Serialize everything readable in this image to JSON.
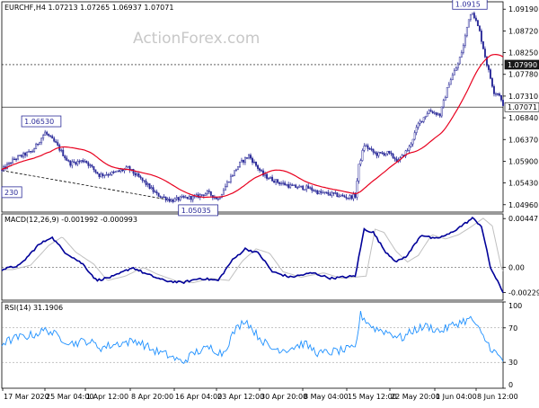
{
  "chart_data": [
    {
      "type": "candlestick",
      "panel": "price",
      "symbol_label": "EURCHF,H4",
      "ohlc_readout": [
        "1.07213",
        "1.07265",
        "1.06937",
        "1.07071"
      ],
      "watermark": "ActionForex.com",
      "ylim": [
        1.048,
        1.0935
      ],
      "y_ticks": [
        1.0919,
        1.0872,
        1.0825,
        1.0778,
        1.0731,
        1.0684,
        1.0637,
        1.059,
        1.0543,
        1.0496
      ],
      "y_tick_labels": [
        "1.09190",
        "1.08720",
        "1.08250",
        "1.07780",
        "1.07310",
        "1.06840",
        "1.06370",
        "1.05900",
        "1.05430",
        "1.04960"
      ],
      "x_tick_labels": [
        "17 Mar 2020",
        "25 Mar 04:00",
        "1 Apr 12:00",
        "8 Apr 20:00",
        "16 Apr 04:00",
        "23 Apr 12:00",
        "30 Apr 20:00",
        "8 May 04:00",
        "15 May 12:00",
        "22 May 20:00",
        "1 Jun 04:00",
        "8 Jun 12:00"
      ],
      "horizontal_levels": [
        {
          "value": 1.0799,
          "label": "1.07990",
          "style": "dotted"
        },
        {
          "value": 1.07071,
          "label": "1.07071",
          "style": "solid"
        }
      ],
      "annotations": [
        {
          "label": "1.06530",
          "value": 1.0653
        },
        {
          "label": "1.05035",
          "value": 1.05035
        },
        {
          "label": "1.0915",
          "value": 1.0915
        },
        {
          "label": "230",
          "value": 1.0523
        }
      ],
      "trendline": {
        "from": 1.057,
        "to": 1.0505,
        "style": "dashed"
      },
      "anchors": [
        {
          "t": 0,
          "v": 1.057
        },
        {
          "t": 14,
          "v": 1.0595
        },
        {
          "t": 34,
          "v": 1.0612
        },
        {
          "t": 48,
          "v": 1.0652
        },
        {
          "t": 60,
          "v": 1.0628
        },
        {
          "t": 75,
          "v": 1.0585
        },
        {
          "t": 92,
          "v": 1.0592
        },
        {
          "t": 108,
          "v": 1.056
        },
        {
          "t": 125,
          "v": 1.0565
        },
        {
          "t": 140,
          "v": 1.0575
        },
        {
          "t": 158,
          "v": 1.0545
        },
        {
          "t": 172,
          "v": 1.0518
        },
        {
          "t": 188,
          "v": 1.0505
        },
        {
          "t": 200,
          "v": 1.051
        },
        {
          "t": 214,
          "v": 1.0512
        },
        {
          "t": 228,
          "v": 1.0522
        },
        {
          "t": 240,
          "v": 1.0508
        },
        {
          "t": 252,
          "v": 1.055
        },
        {
          "t": 264,
          "v": 1.0585
        },
        {
          "t": 274,
          "v": 1.0602
        },
        {
          "t": 290,
          "v": 1.056
        },
        {
          "t": 306,
          "v": 1.0545
        },
        {
          "t": 322,
          "v": 1.0535
        },
        {
          "t": 340,
          "v": 1.0532
        },
        {
          "t": 352,
          "v": 1.0522
        },
        {
          "t": 368,
          "v": 1.0518
        },
        {
          "t": 384,
          "v": 1.0512
        },
        {
          "t": 392,
          "v": 1.0515
        },
        {
          "t": 396,
          "v": 1.058
        },
        {
          "t": 402,
          "v": 1.0625
        },
        {
          "t": 415,
          "v": 1.0605
        },
        {
          "t": 428,
          "v": 1.0608
        },
        {
          "t": 440,
          "v": 1.059
        },
        {
          "t": 452,
          "v": 1.062
        },
        {
          "t": 462,
          "v": 1.067
        },
        {
          "t": 474,
          "v": 1.07
        },
        {
          "t": 486,
          "v": 1.069
        },
        {
          "t": 496,
          "v": 1.076
        },
        {
          "t": 506,
          "v": 1.08
        },
        {
          "t": 512,
          "v": 1.084
        },
        {
          "t": 518,
          "v": 1.09
        },
        {
          "t": 522,
          "v": 1.0915
        },
        {
          "t": 530,
          "v": 1.087
        },
        {
          "t": 538,
          "v": 1.08
        },
        {
          "t": 546,
          "v": 1.074
        },
        {
          "t": 552,
          "v": 1.0735
        },
        {
          "t": 556,
          "v": 1.0707
        }
      ],
      "moving_average": {
        "color": "#e8001e"
      },
      "candle_up_color": "#2b2b99",
      "candle_down_color": "#2b2b99"
    },
    {
      "type": "line",
      "panel": "macd",
      "label": "MACD(12,26,9) -0.001992 -0.000993",
      "ylim": [
        -0.003,
        0.0049
      ],
      "y_ticks": [
        0.004471,
        0.0,
        -0.002299
      ],
      "y_tick_labels": [
        "0.004471",
        "0.00",
        "-0.002299"
      ],
      "series": [
        {
          "color": "#000099"
        },
        {
          "color": "#c0c0c0"
        }
      ],
      "anchors": [
        {
          "t": 0,
          "v": -0.0002
        },
        {
          "t": 20,
          "v": 0.0002
        },
        {
          "t": 40,
          "v": 0.002
        },
        {
          "t": 55,
          "v": 0.0028
        },
        {
          "t": 70,
          "v": 0.0014
        },
        {
          "t": 90,
          "v": 0.0003
        },
        {
          "t": 105,
          "v": -0.0012
        },
        {
          "t": 125,
          "v": -0.0008
        },
        {
          "t": 145,
          "v": 0.0
        },
        {
          "t": 160,
          "v": -0.0006
        },
        {
          "t": 180,
          "v": -0.0012
        },
        {
          "t": 200,
          "v": -0.0014
        },
        {
          "t": 220,
          "v": -0.001
        },
        {
          "t": 240,
          "v": -0.0012
        },
        {
          "t": 255,
          "v": 0.0006
        },
        {
          "t": 270,
          "v": 0.0017
        },
        {
          "t": 285,
          "v": 0.0013
        },
        {
          "t": 300,
          "v": -0.0004
        },
        {
          "t": 320,
          "v": -0.0009
        },
        {
          "t": 345,
          "v": -0.0005
        },
        {
          "t": 365,
          "v": -0.001
        },
        {
          "t": 392,
          "v": -0.0008
        },
        {
          "t": 402,
          "v": 0.0035
        },
        {
          "t": 412,
          "v": 0.0032
        },
        {
          "t": 425,
          "v": 0.0015
        },
        {
          "t": 438,
          "v": 0.0005
        },
        {
          "t": 450,
          "v": 0.0011
        },
        {
          "t": 465,
          "v": 0.003
        },
        {
          "t": 480,
          "v": 0.0026
        },
        {
          "t": 495,
          "v": 0.003
        },
        {
          "t": 510,
          "v": 0.0038
        },
        {
          "t": 522,
          "v": 0.0045
        },
        {
          "t": 532,
          "v": 0.0038
        },
        {
          "t": 542,
          "v": 0.0
        },
        {
          "t": 556,
          "v": -0.0023
        }
      ]
    },
    {
      "type": "line",
      "panel": "rsi",
      "label": "RSI(14) 31.1906",
      "ylim": [
        0,
        100
      ],
      "y_ticks": [
        100,
        70,
        30,
        0
      ],
      "y_tick_labels": [
        "100",
        "70",
        "30",
        "0"
      ],
      "levels": [
        70,
        30
      ],
      "series": [
        {
          "color": "#1e90ff"
        }
      ],
      "anchors": [
        {
          "t": 0,
          "v": 52
        },
        {
          "t": 15,
          "v": 58
        },
        {
          "t": 35,
          "v": 62
        },
        {
          "t": 50,
          "v": 68
        },
        {
          "t": 62,
          "v": 60
        },
        {
          "t": 78,
          "v": 52
        },
        {
          "t": 95,
          "v": 55
        },
        {
          "t": 110,
          "v": 47
        },
        {
          "t": 130,
          "v": 52
        },
        {
          "t": 150,
          "v": 55
        },
        {
          "t": 168,
          "v": 44
        },
        {
          "t": 185,
          "v": 38
        },
        {
          "t": 200,
          "v": 30
        },
        {
          "t": 215,
          "v": 42
        },
        {
          "t": 232,
          "v": 47
        },
        {
          "t": 245,
          "v": 40
        },
        {
          "t": 258,
          "v": 66
        },
        {
          "t": 270,
          "v": 80
        },
        {
          "t": 282,
          "v": 63
        },
        {
          "t": 298,
          "v": 46
        },
        {
          "t": 316,
          "v": 45
        },
        {
          "t": 335,
          "v": 52
        },
        {
          "t": 352,
          "v": 40
        },
        {
          "t": 372,
          "v": 43
        },
        {
          "t": 392,
          "v": 46
        },
        {
          "t": 398,
          "v": 85
        },
        {
          "t": 412,
          "v": 70
        },
        {
          "t": 428,
          "v": 65
        },
        {
          "t": 444,
          "v": 58
        },
        {
          "t": 458,
          "v": 68
        },
        {
          "t": 472,
          "v": 72
        },
        {
          "t": 486,
          "v": 66
        },
        {
          "t": 500,
          "v": 73
        },
        {
          "t": 512,
          "v": 78
        },
        {
          "t": 522,
          "v": 80
        },
        {
          "t": 532,
          "v": 62
        },
        {
          "t": 544,
          "v": 45
        },
        {
          "t": 556,
          "v": 31
        }
      ]
    }
  ]
}
